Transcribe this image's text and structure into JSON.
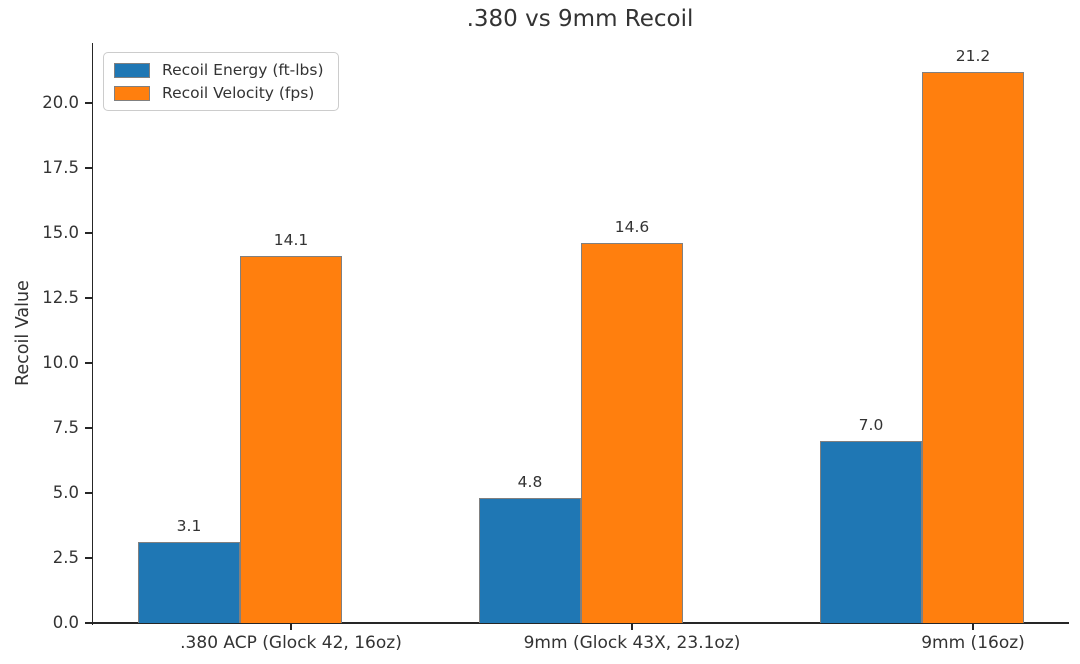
{
  "chart_data": {
    "type": "bar",
    "title": ".380 vs 9mm Recoil",
    "xlabel": "",
    "ylabel": "Recoil Value",
    "categories": [
      ".380 ACP (Glock 42, 16oz)",
      "9mm (Glock 43X, 23.1oz)",
      "9mm (16oz)"
    ],
    "series": [
      {
        "name": "Recoil Energy (ft-lbs)",
        "color": "#1f77b4",
        "values": [
          3.1,
          4.8,
          7.0
        ]
      },
      {
        "name": "Recoil Velocity (fps)",
        "color": "#ff7f0e",
        "values": [
          14.1,
          14.6,
          21.2
        ]
      }
    ],
    "yticks": [
      "0.0",
      "2.5",
      "5.0",
      "7.5",
      "10.0",
      "12.5",
      "15.0",
      "17.5",
      "20.0"
    ],
    "ylim": [
      0,
      22.3
    ],
    "grid": false,
    "legend_position": "upper left",
    "bar_edge_color": "#808080",
    "text_color": "#333333",
    "background_color": "#ffffff"
  }
}
